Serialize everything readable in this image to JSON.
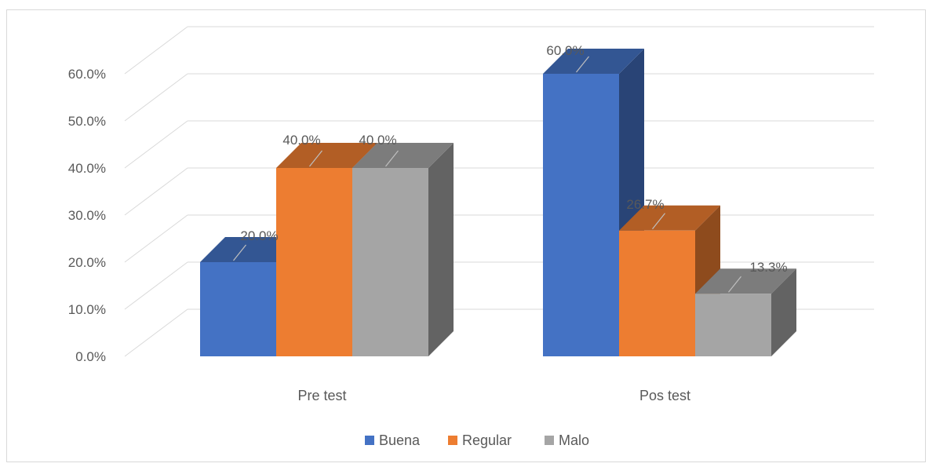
{
  "chart_data": {
    "type": "bar",
    "style": "3d-clustered-column",
    "categories": [
      "Pre test",
      "Pos test"
    ],
    "series": [
      {
        "name": "Buena",
        "values": [
          20.0,
          60.0
        ],
        "labels": [
          "20.0%",
          "60.0%"
        ],
        "color": "#4472c4"
      },
      {
        "name": "Regular",
        "values": [
          40.0,
          26.7
        ],
        "labels": [
          "40.0%",
          "26.7%"
        ],
        "color": "#ed7d31"
      },
      {
        "name": "Malo",
        "values": [
          40.0,
          13.3
        ],
        "labels": [
          "40.0%",
          "13.3%"
        ],
        "color": "#a5a5a5"
      }
    ],
    "yticks": [
      "0.0%",
      "10.0%",
      "20.0%",
      "30.0%",
      "40.0%",
      "50.0%",
      "60.0%"
    ],
    "ylim": [
      0,
      60
    ],
    "title": "",
    "xlabel": "",
    "ylabel": "",
    "grid": true,
    "legend": "bottom"
  }
}
